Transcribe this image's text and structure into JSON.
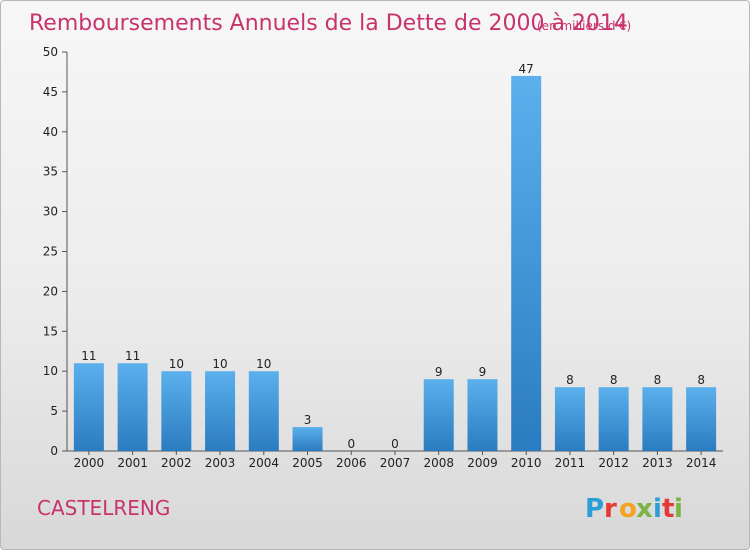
{
  "chart_data": {
    "type": "bar",
    "title": "Remboursements Annuels de la Dette de 2000 à 2014",
    "subtitle": "(en milliers d'€)",
    "categories": [
      "2000",
      "2001",
      "2002",
      "2003",
      "2004",
      "2005",
      "2006",
      "2007",
      "2008",
      "2009",
      "2010",
      "2011",
      "2012",
      "2013",
      "2014"
    ],
    "values": [
      11,
      11,
      10,
      10,
      10,
      3,
      0,
      0,
      9,
      9,
      47,
      8,
      8,
      8,
      8
    ],
    "ylim": [
      0,
      50
    ],
    "yticks": [
      0,
      5,
      10,
      15,
      20,
      25,
      30,
      35,
      40,
      45,
      50
    ],
    "grid": false,
    "bar_color": "#3a8fd6"
  },
  "footer": {
    "commune": "CASTELRENG",
    "logo": "Proxiti"
  },
  "colors": {
    "title": "#c8336b",
    "logo": [
      "#2a9fd6",
      "#e53935",
      "#f6a21e",
      "#7cb342",
      "#2a9fd6",
      "#e53935",
      "#7cb342"
    ]
  }
}
